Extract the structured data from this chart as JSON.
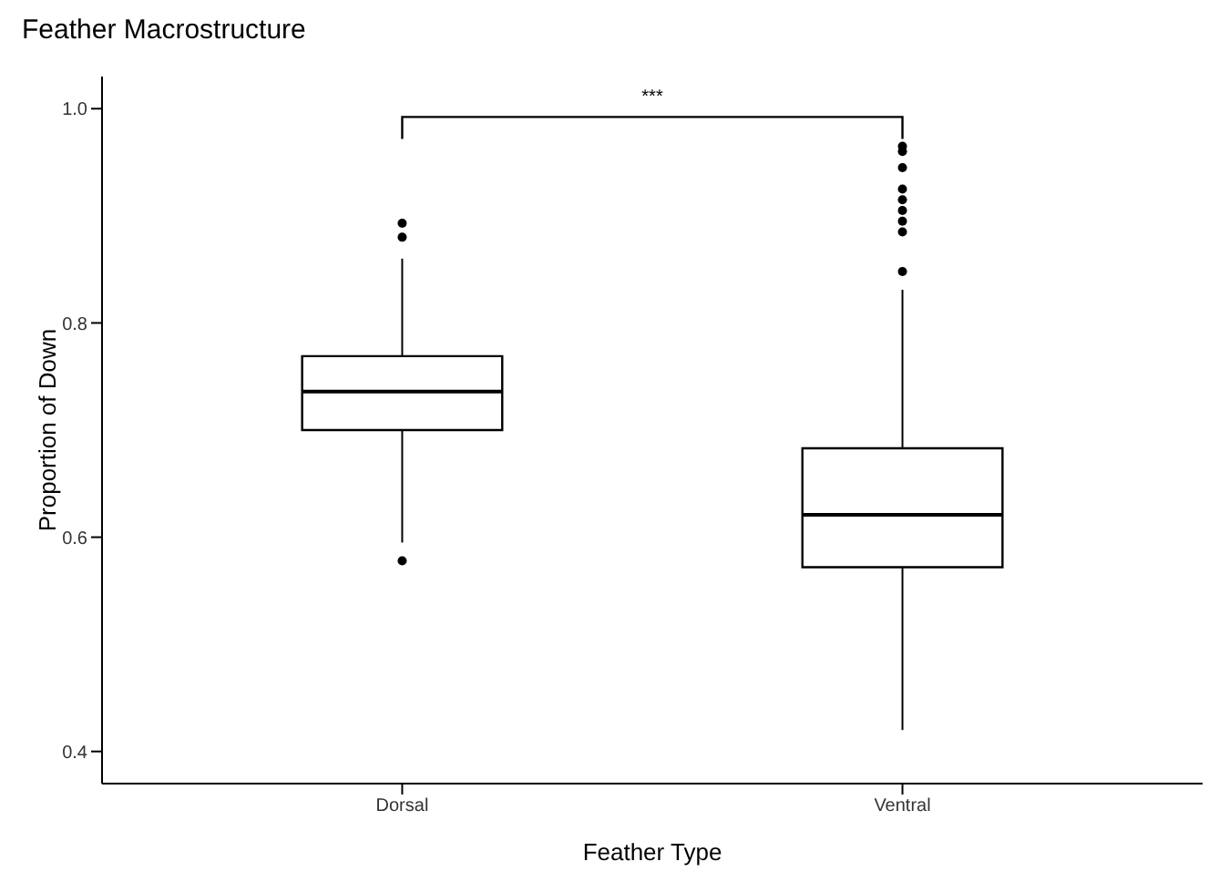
{
  "chart_data": {
    "type": "box",
    "title": "Feather Macrostructure",
    "xlabel": "Feather Type",
    "ylabel": "Proportion of Down",
    "categories": [
      "Dorsal",
      "Ventral"
    ],
    "color": "#000000",
    "boxes": [
      {
        "low": 0.595,
        "q1": 0.7,
        "median": 0.736,
        "q3": 0.769,
        "high": 0.86,
        "outliers": [
          0.893,
          0.88,
          0.578
        ]
      },
      {
        "low": 0.42,
        "q1": 0.572,
        "median": 0.621,
        "q3": 0.683,
        "high": 0.831,
        "outliers": [
          0.965,
          0.96,
          0.945,
          0.925,
          0.915,
          0.905,
          0.895,
          0.885,
          0.848
        ]
      }
    ],
    "ylim": [
      0.37,
      1.03
    ],
    "yticks": [
      {
        "value": 0.4,
        "label": "0.4"
      },
      {
        "value": 0.6,
        "label": "0.6"
      },
      {
        "value": 0.8,
        "label": "0.8"
      },
      {
        "value": 1.0,
        "label": "1.0"
      }
    ],
    "grid": false,
    "legend": false,
    "annotations": [
      "***"
    ]
  }
}
